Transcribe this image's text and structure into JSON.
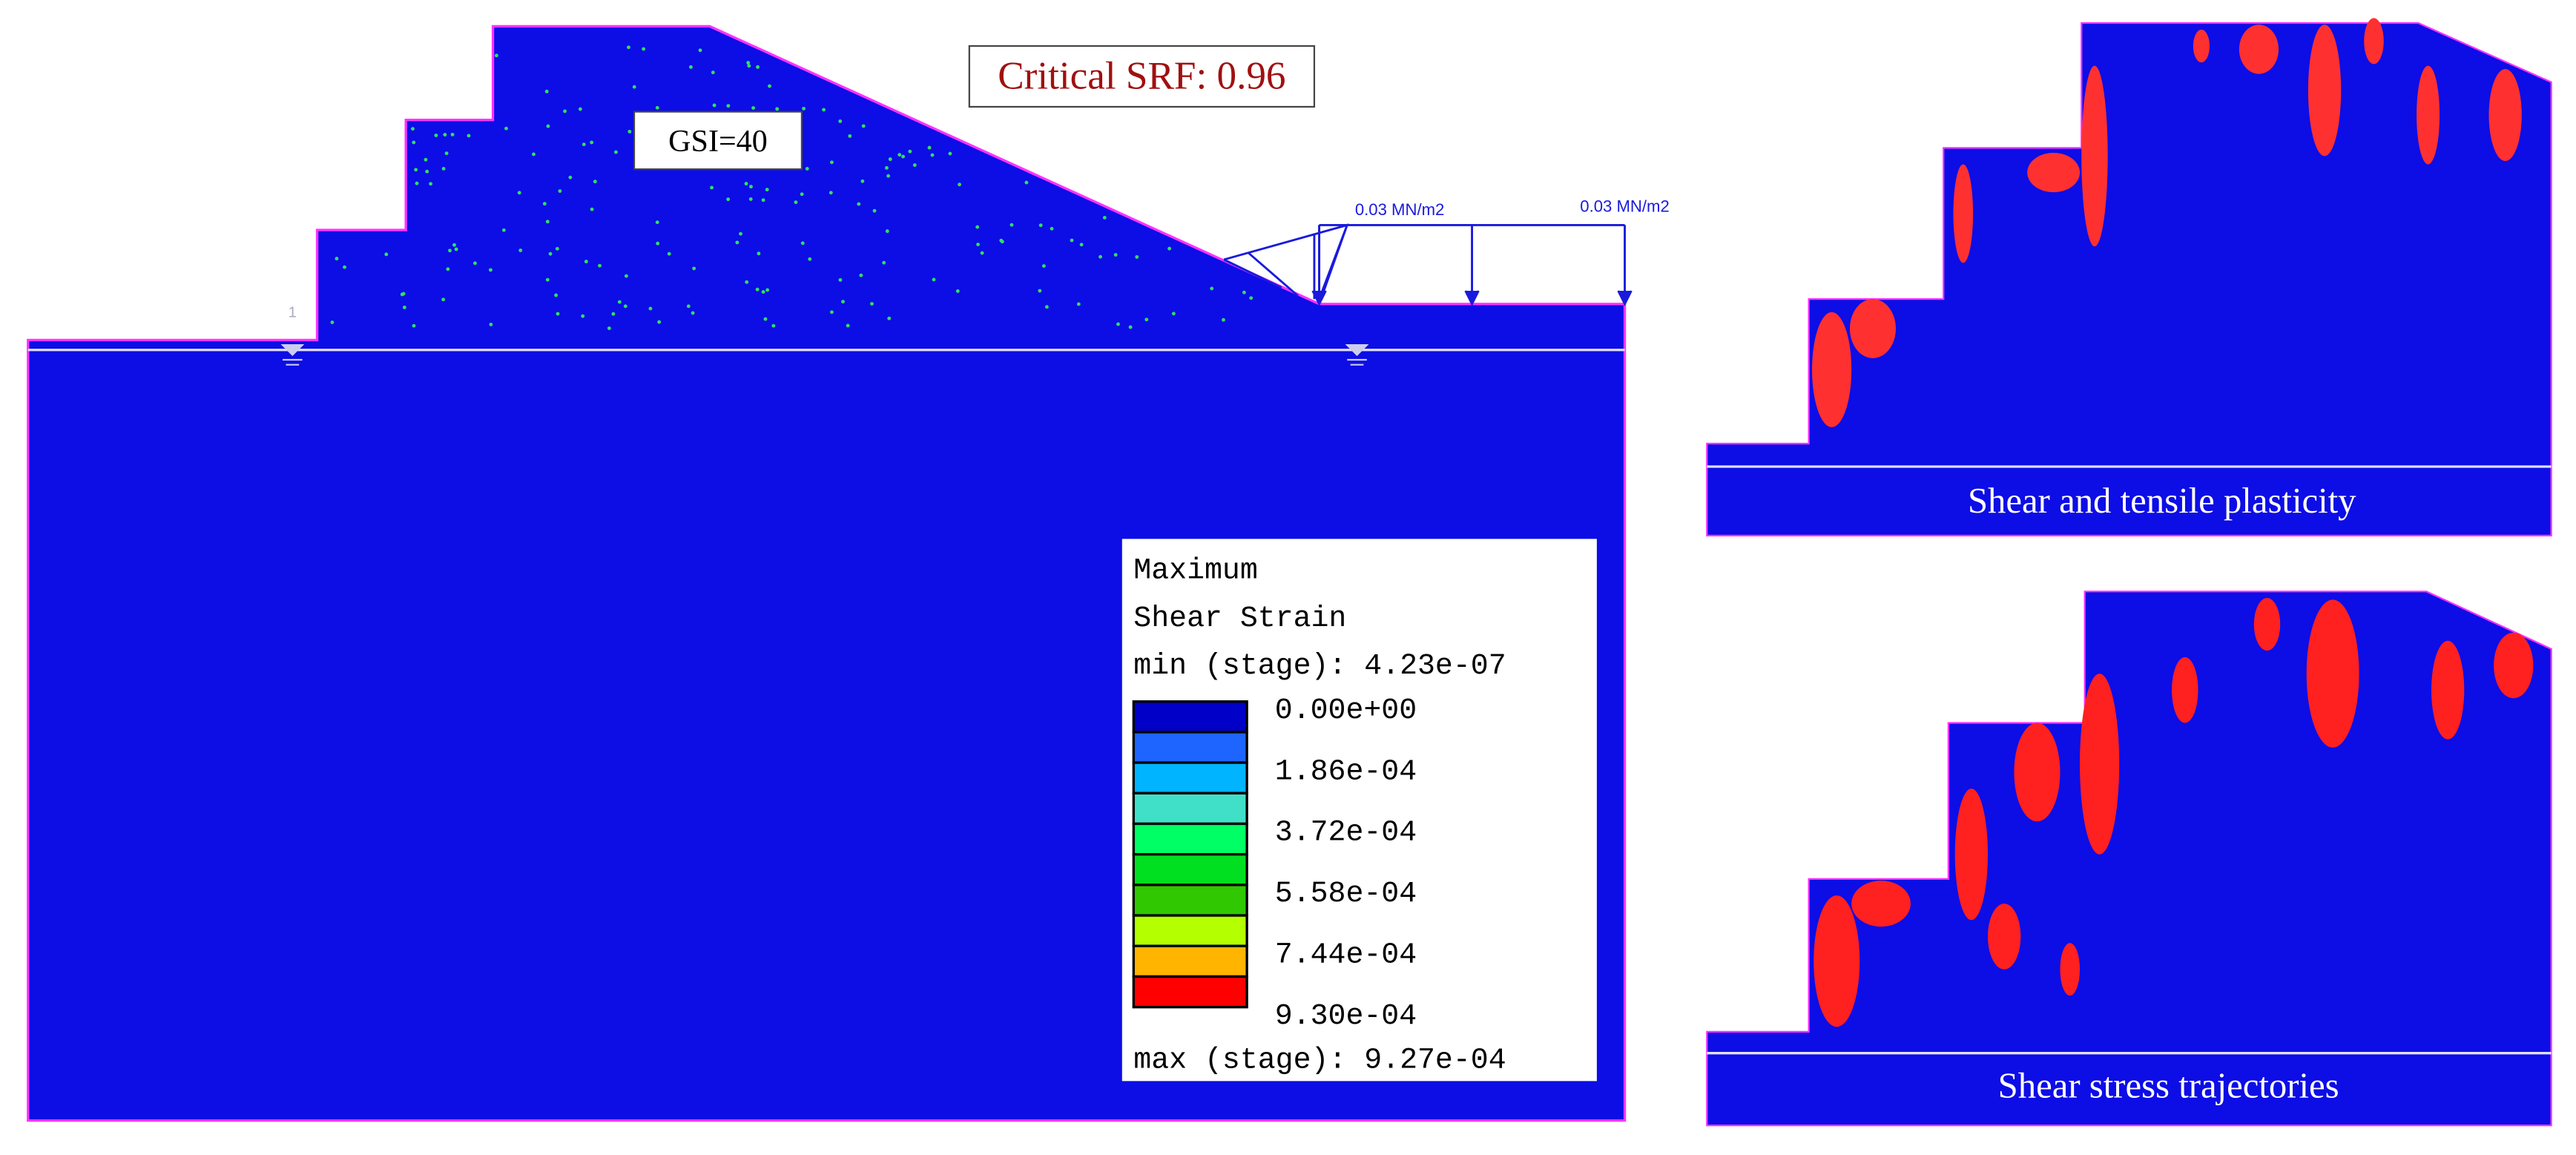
{
  "main_panel": {
    "srf_label": "Critical SRF: 0.96",
    "gsi_label": "GSI=40",
    "node_label": "1",
    "load_labels": [
      "0.03 MN/m2",
      "0.03 MN/m2"
    ],
    "legend": {
      "title_lines": [
        "Maximum",
        "Shear Strain"
      ],
      "min_label": "min (stage): 4.23e-07",
      "levels": [
        "0.00e+00",
        "1.86e-04",
        "3.72e-04",
        "5.58e-04",
        "7.44e-04",
        "9.30e-04"
      ],
      "max_label": "max (stage): 9.27e-04"
    }
  },
  "side_panels": [
    {
      "caption": "Shear and tensile plasticity"
    },
    {
      "caption": "Shear stress trajectories"
    }
  ]
}
